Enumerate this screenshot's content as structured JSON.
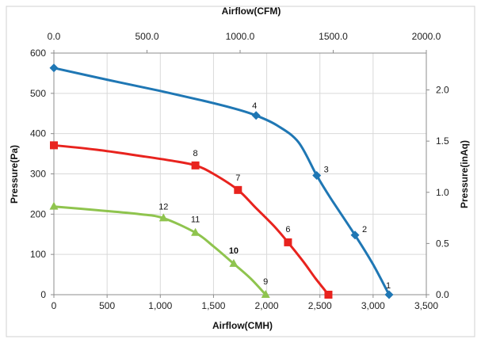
{
  "chart_data": {
    "type": "line",
    "xlabel": "Airflow(CMH)",
    "x2label": "Airflow(CFM)",
    "ylabel": "Pressure(Pa)",
    "y2label": "Pressure(inAq)",
    "xlim": [
      0,
      3500
    ],
    "ylim": [
      0,
      600
    ],
    "x2lim": [
      0,
      2000
    ],
    "y2lim": [
      0,
      2.36
    ],
    "grid": true,
    "x_ticks": [
      0,
      500,
      1000,
      1500,
      2000,
      2500,
      3000,
      3500
    ],
    "x_tick_labels": [
      "0",
      "500",
      "1,000",
      "1,500",
      "2,000",
      "2,500",
      "3,000",
      "3,500"
    ],
    "y_ticks": [
      0,
      100,
      200,
      300,
      400,
      500,
      600
    ],
    "y_tick_labels": [
      "0",
      "100",
      "200",
      "300",
      "400",
      "500",
      "600"
    ],
    "x2_ticks": [
      0,
      500,
      1000,
      1500,
      2000
    ],
    "x2_tick_labels": [
      "0.0",
      "500.0",
      "1000.0",
      "1500.0",
      "2000.0"
    ],
    "y2_ticks": [
      0,
      0.5,
      1.0,
      1.5,
      2.0
    ],
    "y2_tick_labels": [
      "0.0",
      "0.5",
      "1.0",
      "1.5",
      "2.0"
    ],
    "series": [
      {
        "color": "#1f77b4",
        "marker": "diamond",
        "curve": [
          [
            0,
            563
          ],
          [
            500,
            534
          ],
          [
            1000,
            506
          ],
          [
            1400,
            482
          ],
          [
            1700,
            462
          ],
          [
            1900,
            445
          ],
          [
            2100,
            420
          ],
          [
            2300,
            378
          ],
          [
            2470,
            296
          ],
          [
            2600,
            240
          ],
          [
            2830,
            148
          ],
          [
            3000,
            75
          ],
          [
            3150,
            0
          ]
        ],
        "points": [
          {
            "x": 0,
            "y": 563,
            "label": ""
          },
          {
            "x": 1900,
            "y": 445,
            "label": "4"
          },
          {
            "x": 2470,
            "y": 296,
            "label": "3"
          },
          {
            "x": 2830,
            "y": 148,
            "label": "2"
          },
          {
            "x": 3150,
            "y": 0,
            "label": "1"
          }
        ]
      },
      {
        "color": "#e8231e",
        "marker": "square",
        "curve": [
          [
            0,
            371
          ],
          [
            400,
            360
          ],
          [
            800,
            345
          ],
          [
            1100,
            333
          ],
          [
            1330,
            321
          ],
          [
            1500,
            300
          ],
          [
            1730,
            260
          ],
          [
            1900,
            215
          ],
          [
            2070,
            170
          ],
          [
            2200,
            130
          ],
          [
            2350,
            80
          ],
          [
            2460,
            40
          ],
          [
            2580,
            0
          ]
        ],
        "points": [
          {
            "x": 0,
            "y": 371,
            "label": ""
          },
          {
            "x": 1330,
            "y": 321,
            "label": "8"
          },
          {
            "x": 1730,
            "y": 260,
            "label": "7"
          },
          {
            "x": 2200,
            "y": 130,
            "label": "6"
          },
          {
            "x": 2580,
            "y": 0,
            "label": ""
          }
        ]
      },
      {
        "color": "#8fc44e",
        "marker": "triangle",
        "curve": [
          [
            0,
            219
          ],
          [
            400,
            210
          ],
          [
            800,
            200
          ],
          [
            1030,
            190
          ],
          [
            1330,
            154
          ],
          [
            1500,
            120
          ],
          [
            1690,
            77
          ],
          [
            1850,
            40
          ],
          [
            1990,
            0
          ]
        ],
        "points": [
          {
            "x": 0,
            "y": 219,
            "label": ""
          },
          {
            "x": 1030,
            "y": 190,
            "label": "12"
          },
          {
            "x": 1330,
            "y": 154,
            "label": "11"
          },
          {
            "x": 1690,
            "y": 77,
            "label": "10"
          },
          {
            "x": 1990,
            "y": 0,
            "label": "9"
          }
        ]
      }
    ]
  }
}
